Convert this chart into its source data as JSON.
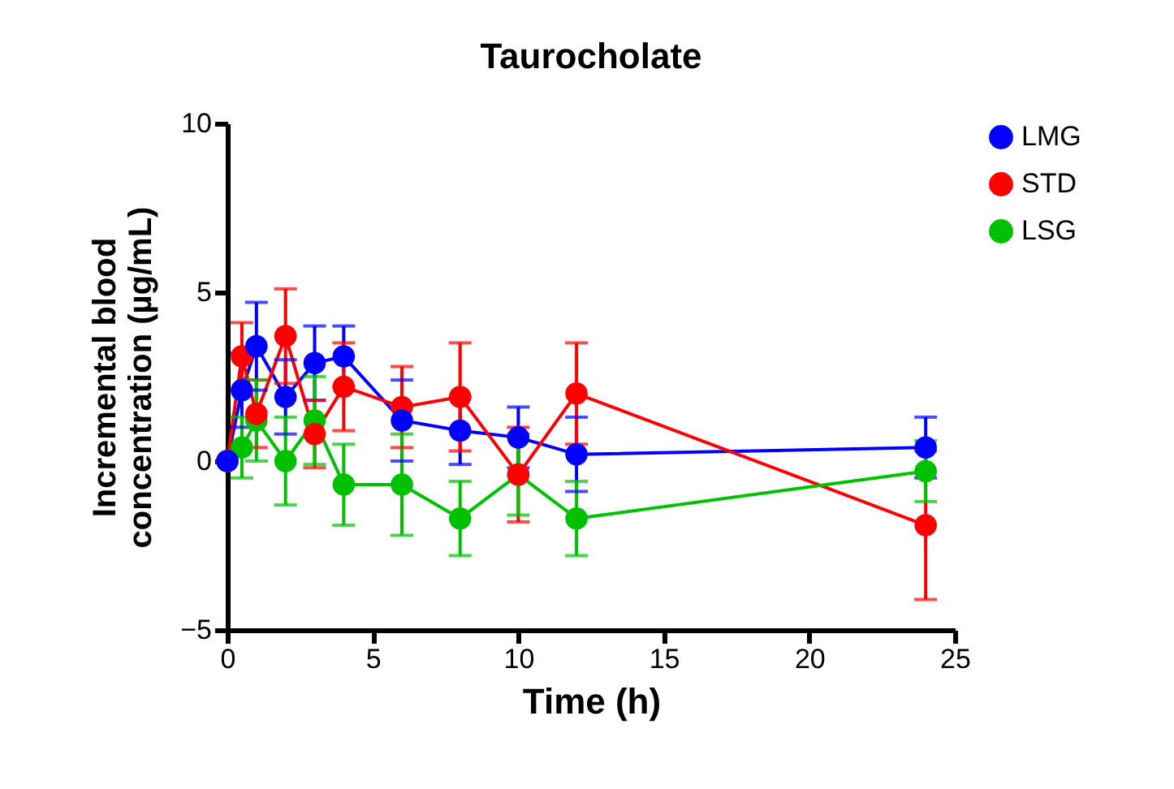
{
  "chart_data": {
    "type": "line",
    "title": "Taurocholate",
    "xlabel": "Time (h)",
    "ylabel": "Incremental blood concentration (µg/mL)",
    "x": [
      0,
      0.5,
      1,
      2,
      3,
      4,
      6,
      8,
      10,
      12,
      24
    ],
    "series": [
      {
        "name": "LMG",
        "color": "#0000ff",
        "values": [
          0,
          2.1,
          3.4,
          1.9,
          2.9,
          3.1,
          1.2,
          0.9,
          0.7,
          0.2,
          0.4
        ],
        "errors": [
          null,
          1.1,
          1.3,
          1.1,
          1.1,
          0.9,
          1.2,
          1.0,
          0.9,
          1.1,
          0.9
        ]
      },
      {
        "name": "STD",
        "color": "#ff0000",
        "values": [
          0,
          3.1,
          1.4,
          3.7,
          0.8,
          2.2,
          1.6,
          1.9,
          -0.4,
          2.0,
          -1.9
        ],
        "errors": [
          null,
          1.0,
          1.0,
          1.4,
          1.0,
          1.3,
          1.2,
          1.6,
          1.4,
          1.5,
          2.2
        ]
      },
      {
        "name": "LSG",
        "color": "#00c000",
        "values": [
          0,
          0.4,
          1.2,
          0.0,
          1.2,
          -0.7,
          -0.7,
          -1.7,
          -0.4,
          -1.7,
          -0.3
        ],
        "errors": [
          null,
          0.9,
          1.2,
          1.3,
          1.3,
          1.2,
          1.5,
          1.1,
          1.2,
          1.1,
          0.9
        ]
      }
    ],
    "xlim": [
      0,
      25
    ],
    "xticks": [
      0,
      5,
      10,
      15,
      20,
      25
    ],
    "ylim": [
      -5,
      10
    ],
    "yticks": [
      -5,
      0,
      5,
      10
    ],
    "grid": false,
    "legend": "top right",
    "marker": "circle",
    "line_style": "solid"
  }
}
